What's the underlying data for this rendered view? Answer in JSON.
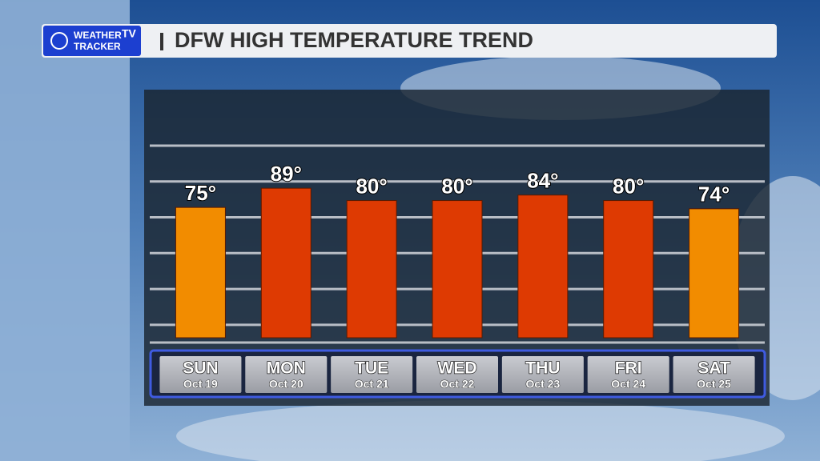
{
  "logo": {
    "line1": "WEATHER",
    "line2": "TRACKER",
    "badge": "TV"
  },
  "chart_data": {
    "type": "bar",
    "title": "DFW HIGH TEMPERATURE TREND",
    "categories": [
      "SUN",
      "MON",
      "TUE",
      "WED",
      "THU",
      "FRI",
      "SAT"
    ],
    "dates": [
      "Oct 19",
      "Oct 20",
      "Oct 21",
      "Oct 22",
      "Oct 23",
      "Oct 24",
      "Oct 25"
    ],
    "values": [
      75,
      89,
      80,
      80,
      84,
      80,
      74
    ],
    "value_labels": [
      "75°",
      "89°",
      "80°",
      "80°",
      "84°",
      "80°",
      "74°"
    ],
    "colors": [
      "#f28c00",
      "#de3a02",
      "#de3a02",
      "#de3a02",
      "#de3a02",
      "#de3a02",
      "#f28c00"
    ],
    "ylim": [
      -20,
      120
    ]
  }
}
